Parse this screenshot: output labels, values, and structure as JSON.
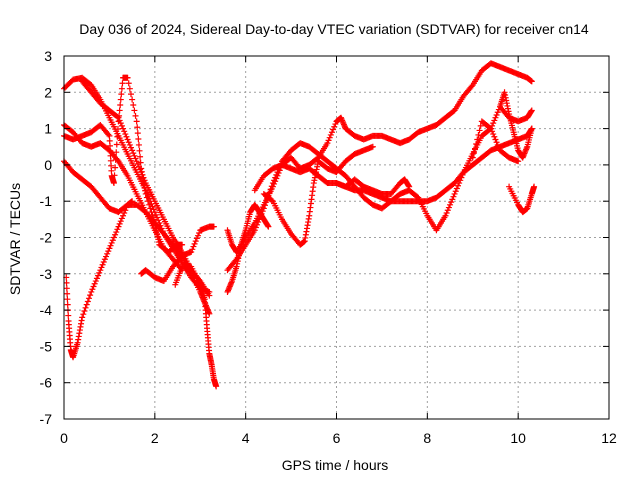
{
  "chart_data": {
    "type": "scatter",
    "title": "Day 036 of 2024, Sidereal Day-to-day VTEC variation (SDTVAR) for receiver cn14",
    "xlabel": "GPS time / hours",
    "ylabel": "SDTVAR / TECUs",
    "xlim": [
      0,
      12
    ],
    "ylim": [
      -7,
      3
    ],
    "xticks": [
      "0",
      "2",
      "4",
      "6",
      "8",
      "10",
      "12"
    ],
    "yticks": [
      "-7",
      "-6",
      "-5",
      "-4",
      "-3",
      "-2",
      "-1",
      "0",
      "1",
      "2",
      "3"
    ],
    "grid": true,
    "marker": "plus",
    "color": "#ff0000",
    "series": [
      {
        "points": [
          [
            0.0,
            2.1
          ],
          [
            0.2,
            2.35
          ],
          [
            0.4,
            2.4
          ],
          [
            0.6,
            2.2
          ],
          [
            0.8,
            1.8
          ],
          [
            1.0,
            1.3
          ],
          [
            1.2,
            0.8
          ],
          [
            1.4,
            0.3
          ],
          [
            1.6,
            -0.2
          ],
          [
            1.8,
            -0.7
          ],
          [
            2.0,
            -1.3
          ],
          [
            2.2,
            -1.9
          ],
          [
            2.4,
            -2.3
          ],
          [
            2.6,
            -2.7
          ],
          [
            2.8,
            -3.1
          ],
          [
            3.0,
            -3.4
          ],
          [
            3.2,
            -3.5
          ]
        ]
      },
      {
        "points": [
          [
            0.4,
            2.3
          ],
          [
            0.6,
            2.0
          ],
          [
            0.8,
            1.7
          ],
          [
            1.0,
            1.5
          ],
          [
            1.2,
            1.3
          ],
          [
            1.4,
            0.7
          ],
          [
            1.6,
            0.1
          ],
          [
            1.8,
            -0.5
          ],
          [
            2.0,
            -1.0
          ],
          [
            2.2,
            -1.5
          ],
          [
            2.4,
            -2.0
          ],
          [
            2.6,
            -2.4
          ],
          [
            2.8,
            -2.9
          ],
          [
            3.0,
            -3.2
          ],
          [
            3.2,
            -3.6
          ]
        ]
      },
      {
        "points": [
          [
            0.0,
            1.1
          ],
          [
            0.2,
            0.9
          ],
          [
            0.4,
            0.6
          ],
          [
            0.6,
            0.5
          ],
          [
            0.8,
            0.6
          ],
          [
            1.0,
            0.4
          ],
          [
            1.2,
            0.1
          ],
          [
            1.4,
            -0.3
          ],
          [
            1.6,
            -0.8
          ],
          [
            1.8,
            -1.3
          ],
          [
            2.0,
            -1.8
          ],
          [
            2.2,
            -2.3
          ],
          [
            2.4,
            -2.6
          ],
          [
            2.6,
            -2.9
          ]
        ]
      },
      {
        "points": [
          [
            0.0,
            0.8
          ],
          [
            0.2,
            0.7
          ],
          [
            0.4,
            0.8
          ],
          [
            0.6,
            0.9
          ],
          [
            0.8,
            1.1
          ],
          [
            1.0,
            0.8
          ],
          [
            1.05,
            -0.3
          ],
          [
            1.1,
            -0.5
          ],
          [
            1.2,
            1.2
          ],
          [
            1.3,
            2.4
          ],
          [
            1.4,
            2.4
          ],
          [
            1.6,
            1.2
          ],
          [
            1.7,
            -0.1
          ],
          [
            1.8,
            -0.8
          ],
          [
            2.0,
            -1.6
          ],
          [
            2.1,
            -2.2
          ],
          [
            2.3,
            -2.4
          ],
          [
            2.5,
            -2.2
          ],
          [
            2.6,
            -2.2
          ]
        ]
      },
      {
        "points": [
          [
            0.0,
            0.1
          ],
          [
            0.2,
            -0.2
          ],
          [
            0.4,
            -0.4
          ],
          [
            0.6,
            -0.6
          ],
          [
            0.8,
            -0.9
          ],
          [
            1.0,
            -1.2
          ],
          [
            1.2,
            -1.3
          ],
          [
            1.4,
            -1.1
          ],
          [
            1.6,
            -1.1
          ],
          [
            1.8,
            -1.3
          ],
          [
            2.0,
            -1.6
          ],
          [
            2.2,
            -1.9
          ],
          [
            2.4,
            -2.2
          ],
          [
            2.6,
            -2.5
          ],
          [
            2.8,
            -3.0
          ],
          [
            3.0,
            -3.5
          ],
          [
            3.1,
            -3.8
          ],
          [
            3.2,
            -4.1
          ]
        ]
      },
      {
        "points": [
          [
            0.05,
            -3.1
          ],
          [
            0.1,
            -4.3
          ],
          [
            0.15,
            -5.1
          ],
          [
            0.2,
            -5.3
          ],
          [
            0.3,
            -4.9
          ],
          [
            0.4,
            -4.2
          ],
          [
            0.6,
            -3.5
          ],
          [
            0.8,
            -2.9
          ],
          [
            1.0,
            -2.3
          ],
          [
            1.2,
            -1.7
          ],
          [
            1.4,
            -1.1
          ],
          [
            1.5,
            -1.0
          ]
        ]
      },
      {
        "points": [
          [
            1.7,
            -3.0
          ],
          [
            1.8,
            -2.9
          ],
          [
            2.0,
            -3.1
          ],
          [
            2.2,
            -3.2
          ],
          [
            2.4,
            -2.8
          ],
          [
            2.6,
            -2.5
          ],
          [
            2.8,
            -2.4
          ],
          [
            3.0,
            -1.8
          ],
          [
            3.2,
            -1.7
          ],
          [
            3.3,
            -1.7
          ]
        ]
      },
      {
        "points": [
          [
            2.45,
            -3.3
          ],
          [
            2.6,
            -2.8
          ],
          [
            2.8,
            -2.8
          ],
          [
            3.0,
            -3.3
          ],
          [
            3.1,
            -3.7
          ],
          [
            3.15,
            -4.5
          ],
          [
            3.2,
            -5.2
          ],
          [
            3.25,
            -5.5
          ],
          [
            3.3,
            -5.9
          ],
          [
            3.35,
            -6.1
          ]
        ]
      },
      {
        "points": [
          [
            3.6,
            -3.5
          ],
          [
            3.7,
            -3.2
          ],
          [
            3.8,
            -2.8
          ],
          [
            3.9,
            -2.2
          ],
          [
            4.0,
            -1.8
          ],
          [
            4.1,
            -1.3
          ],
          [
            4.2,
            -1.1
          ],
          [
            4.3,
            -1.3
          ],
          [
            4.4,
            -1.5
          ],
          [
            4.5,
            -1.7
          ]
        ]
      },
      {
        "points": [
          [
            3.6,
            -1.8
          ],
          [
            3.7,
            -2.2
          ],
          [
            3.8,
            -2.4
          ],
          [
            4.0,
            -2.0
          ],
          [
            4.2,
            -1.6
          ],
          [
            4.4,
            -1.1
          ],
          [
            4.6,
            -0.6
          ],
          [
            4.8,
            0.0
          ],
          [
            5.0,
            0.2
          ],
          [
            5.2,
            -0.1
          ],
          [
            5.4,
            0.0
          ],
          [
            5.6,
            0.2
          ],
          [
            5.8,
            0.6
          ],
          [
            6.0,
            1.2
          ],
          [
            6.1,
            1.3
          ],
          [
            6.2,
            1.0
          ],
          [
            6.4,
            0.8
          ],
          [
            6.6,
            0.7
          ],
          [
            6.8,
            0.8
          ],
          [
            7.0,
            0.8
          ],
          [
            7.2,
            0.7
          ],
          [
            7.4,
            0.6
          ],
          [
            7.6,
            0.7
          ],
          [
            7.8,
            0.9
          ],
          [
            8.0,
            1.0
          ],
          [
            8.2,
            1.1
          ],
          [
            8.4,
            1.3
          ],
          [
            8.6,
            1.5
          ],
          [
            8.8,
            1.9
          ],
          [
            9.0,
            2.2
          ],
          [
            9.2,
            2.6
          ],
          [
            9.4,
            2.8
          ],
          [
            9.6,
            2.7
          ],
          [
            9.8,
            2.6
          ],
          [
            10.0,
            2.5
          ],
          [
            10.2,
            2.4
          ],
          [
            10.3,
            2.3
          ]
        ]
      },
      {
        "points": [
          [
            3.6,
            -2.9
          ],
          [
            3.8,
            -2.6
          ],
          [
            4.0,
            -2.2
          ],
          [
            4.2,
            -1.8
          ],
          [
            4.4,
            -1.2
          ],
          [
            4.6,
            -0.5
          ],
          [
            4.8,
            0.1
          ],
          [
            5.0,
            0.4
          ],
          [
            5.2,
            0.6
          ],
          [
            5.4,
            0.5
          ],
          [
            5.6,
            0.3
          ],
          [
            5.8,
            0.1
          ],
          [
            6.0,
            -0.1
          ],
          [
            6.2,
            -0.3
          ],
          [
            6.4,
            -0.6
          ],
          [
            6.6,
            -0.9
          ],
          [
            6.8,
            -1.1
          ],
          [
            7.0,
            -1.2
          ],
          [
            7.2,
            -1.0
          ],
          [
            7.4,
            -0.8
          ],
          [
            7.6,
            -0.7
          ],
          [
            7.8,
            -0.9
          ],
          [
            8.0,
            -1.4
          ],
          [
            8.2,
            -1.8
          ],
          [
            8.4,
            -1.4
          ],
          [
            8.6,
            -0.8
          ],
          [
            8.8,
            -0.2
          ],
          [
            9.0,
            0.3
          ],
          [
            9.2,
            0.8
          ],
          [
            9.4,
            1.0
          ],
          [
            9.6,
            1.6
          ],
          [
            9.8,
            1.3
          ],
          [
            10.0,
            1.2
          ],
          [
            10.2,
            1.3
          ],
          [
            10.3,
            1.5
          ]
        ]
      },
      {
        "points": [
          [
            4.4,
            -0.8
          ],
          [
            4.6,
            -1.0
          ],
          [
            4.8,
            -1.5
          ],
          [
            5.0,
            -1.9
          ],
          [
            5.2,
            -2.2
          ],
          [
            5.3,
            -2.1
          ],
          [
            5.4,
            -1.4
          ],
          [
            5.5,
            -0.5
          ],
          [
            5.6,
            0.1
          ],
          [
            5.8,
            -0.1
          ],
          [
            6.0,
            -0.2
          ],
          [
            6.2,
            0.1
          ],
          [
            6.4,
            0.3
          ],
          [
            6.6,
            0.4
          ],
          [
            6.8,
            0.5
          ]
        ]
      },
      {
        "points": [
          [
            4.2,
            -0.7
          ],
          [
            4.4,
            -0.3
          ],
          [
            4.6,
            -0.1
          ],
          [
            4.8,
            0.0
          ],
          [
            5.0,
            -0.1
          ],
          [
            5.2,
            -0.2
          ],
          [
            5.4,
            -0.1
          ],
          [
            5.6,
            -0.3
          ],
          [
            5.8,
            -0.5
          ],
          [
            6.0,
            -0.5
          ],
          [
            6.2,
            -0.6
          ],
          [
            6.4,
            -0.7
          ],
          [
            6.6,
            -0.7
          ],
          [
            6.8,
            -0.8
          ],
          [
            7.0,
            -0.9
          ],
          [
            7.2,
            -1.0
          ],
          [
            7.4,
            -1.0
          ],
          [
            7.6,
            -1.0
          ],
          [
            7.8,
            -1.0
          ],
          [
            8.0,
            -1.0
          ],
          [
            8.2,
            -0.9
          ],
          [
            8.4,
            -0.7
          ],
          [
            8.6,
            -0.5
          ],
          [
            8.8,
            -0.2
          ],
          [
            9.0,
            0.0
          ],
          [
            9.2,
            0.2
          ],
          [
            9.4,
            0.4
          ],
          [
            9.6,
            0.5
          ],
          [
            9.8,
            0.6
          ],
          [
            10.0,
            0.7
          ],
          [
            10.2,
            0.8
          ],
          [
            10.3,
            1.0
          ]
        ]
      },
      {
        "points": [
          [
            6.0,
            -0.5
          ],
          [
            6.2,
            -0.6
          ],
          [
            6.4,
            -0.4
          ],
          [
            6.6,
            -0.6
          ],
          [
            6.8,
            -0.7
          ],
          [
            7.0,
            -0.8
          ],
          [
            7.2,
            -0.8
          ],
          [
            7.4,
            -0.5
          ],
          [
            7.5,
            -0.4
          ],
          [
            7.6,
            -0.6
          ]
        ]
      },
      {
        "points": [
          [
            9.8,
            -0.6
          ],
          [
            10.0,
            -1.1
          ],
          [
            10.1,
            -1.3
          ],
          [
            10.2,
            -1.2
          ],
          [
            10.3,
            -0.8
          ],
          [
            10.35,
            -0.6
          ]
        ]
      },
      {
        "points": [
          [
            9.6,
            1.6
          ],
          [
            9.7,
            2.0
          ],
          [
            9.8,
            1.4
          ],
          [
            9.9,
            0.9
          ],
          [
            10.0,
            0.4
          ],
          [
            10.1,
            0.2
          ],
          [
            10.2,
            0.5
          ],
          [
            10.3,
            1.0
          ]
        ]
      },
      {
        "points": [
          [
            9.0,
            0.2
          ],
          [
            9.2,
            1.2
          ],
          [
            9.4,
            1.0
          ],
          [
            9.6,
            0.4
          ],
          [
            9.8,
            0.2
          ],
          [
            10.0,
            0.1
          ]
        ]
      }
    ]
  }
}
